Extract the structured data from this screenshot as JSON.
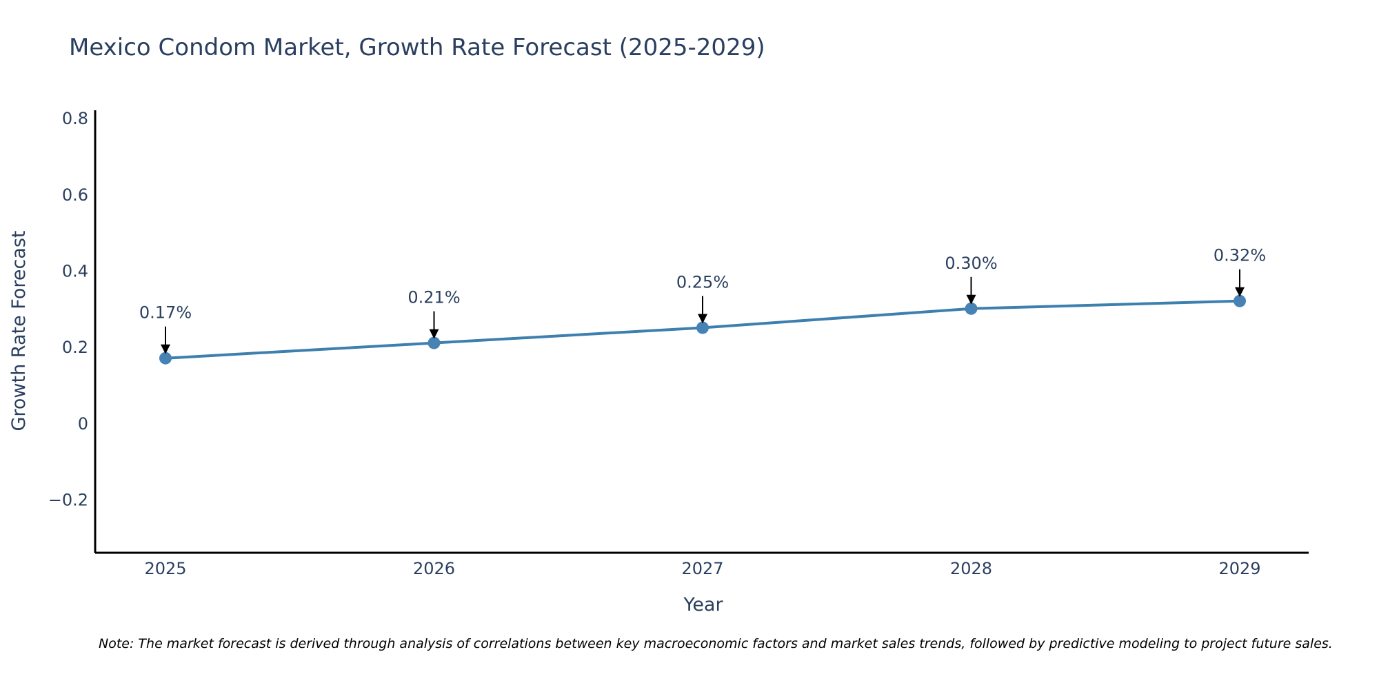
{
  "chart_data": {
    "type": "line",
    "title": "Mexico Condom Market, Growth Rate Forecast (2025-2029)",
    "xlabel": "Year",
    "ylabel": "Growth Rate Forecast",
    "categories": [
      "2025",
      "2026",
      "2027",
      "2028",
      "2029"
    ],
    "series": [
      {
        "name": "Growth Rate Forecast",
        "values": [
          0.17,
          0.21,
          0.25,
          0.3,
          0.32
        ],
        "labels": [
          "0.17%",
          "0.21%",
          "0.25%",
          "0.30%",
          "0.32%"
        ]
      }
    ],
    "ylim": [
      -0.34,
      0.82
    ],
    "yticks": [
      -0.2,
      0,
      0.2,
      0.4,
      0.6,
      0.8
    ],
    "ytick_labels": [
      "−0.2",
      "0",
      "0.2",
      "0.4",
      "0.6",
      "0.8"
    ],
    "grid": false,
    "note": "Note: The market forecast is derived through analysis of correlations between key macroeconomic factors and market sales trends, followed by predictive modeling to project future sales."
  },
  "colors": {
    "line": "#3d7fae",
    "marker": "#4682b4",
    "axis": "#000000",
    "text": "#2a3f5f",
    "arrow": "#000000"
  }
}
